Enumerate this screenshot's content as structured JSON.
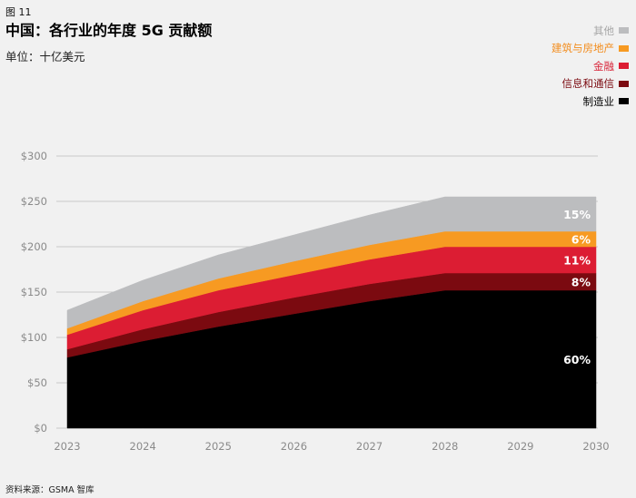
{
  "figure_label": "图 11",
  "title": "中国：各行业的年度 5G 贡献额",
  "unit": "单位：十亿美元",
  "source": "资料来源：GSMA 智库",
  "legend": [
    {
      "label": "其他",
      "color": "#bcbdbf",
      "text_color": "#a7a7a7"
    },
    {
      "label": "建筑与房地产",
      "color": "#f79a22",
      "text_color": "#f28c1c"
    },
    {
      "label": "金融",
      "color": "#dc1d33",
      "text_color": "#d81f34"
    },
    {
      "label": "信息和通信",
      "color": "#7b0a10",
      "text_color": "#7b0a10"
    },
    {
      "label": "制造业",
      "color": "#000000",
      "text_color": "#000000"
    }
  ],
  "chart_data": {
    "type": "area",
    "stacked": true,
    "x": [
      "2023",
      "2024",
      "2025",
      "2026",
      "2027",
      "2028",
      "2029",
      "2030"
    ],
    "ylim": [
      0,
      300
    ],
    "yticks": [
      "$0",
      "$50",
      "$100",
      "$150",
      "$200",
      "$250",
      "$300"
    ],
    "grid": true,
    "legend_position": "top-right",
    "series": [
      {
        "name": "制造业",
        "color": "#000000",
        "values": [
          78,
          96,
          112,
          126,
          140,
          152,
          152,
          152
        ]
      },
      {
        "name": "信息和通信",
        "color": "#7b0a10",
        "values": [
          9,
          13,
          16,
          18,
          19,
          19,
          19,
          19
        ]
      },
      {
        "name": "金融",
        "color": "#dc1d33",
        "values": [
          16,
          21,
          24,
          25,
          27,
          29,
          29,
          29
        ]
      },
      {
        "name": "建筑与房地产",
        "color": "#f79a22",
        "values": [
          7,
          10,
          13,
          15,
          16,
          17,
          17,
          17
        ]
      },
      {
        "name": "其他",
        "color": "#bcbdbf",
        "values": [
          20,
          23,
          26,
          29,
          33,
          38,
          38,
          38
        ]
      }
    ],
    "share_labels": [
      "60%",
      "8%",
      "11%",
      "6%",
      "15%"
    ]
  }
}
